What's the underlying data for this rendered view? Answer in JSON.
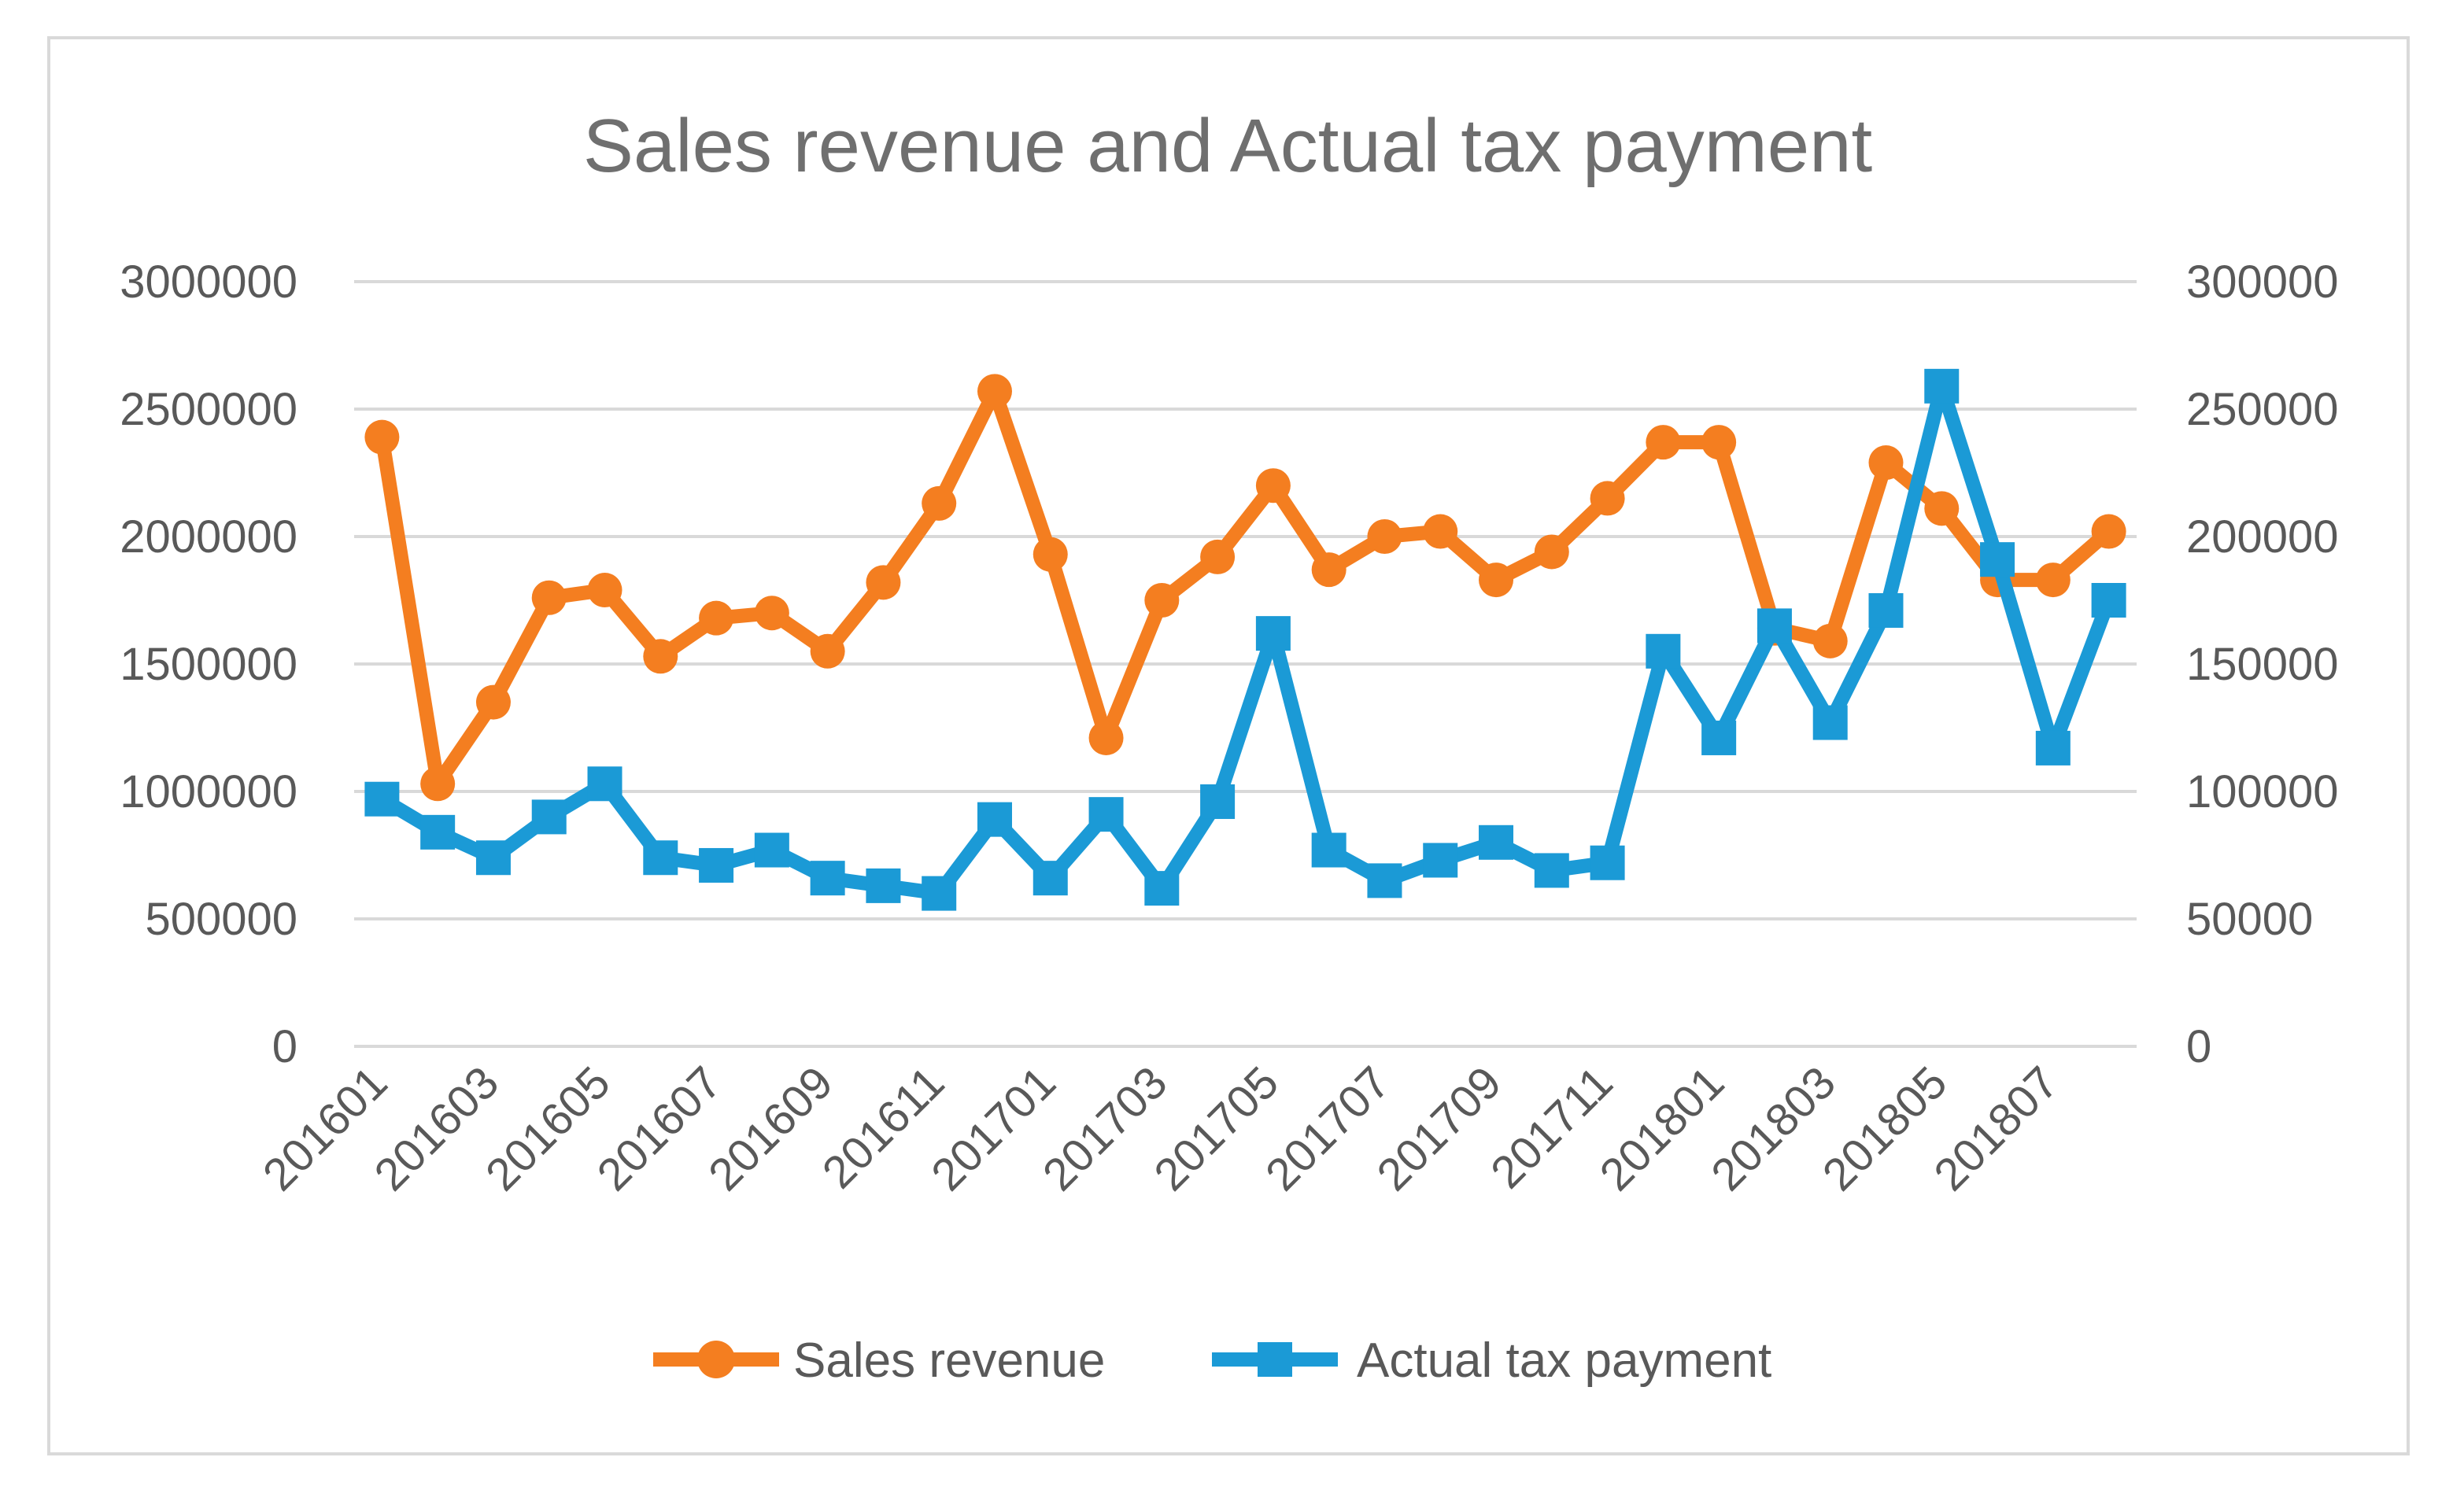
{
  "chart_data": {
    "type": "line",
    "title": "Sales revenue and Actual tax payment",
    "xlabel": "",
    "ylabel_left": "",
    "ylabel_right": "",
    "y_left_lim": [
      0,
      3000000
    ],
    "y_right_lim": [
      0,
      300000
    ],
    "y_left_ticks": [
      "0",
      "500000",
      "1000000",
      "1500000",
      "2000000",
      "2500000",
      "3000000"
    ],
    "y_right_ticks": [
      "0",
      "50000",
      "100000",
      "150000",
      "200000",
      "250000",
      "300000"
    ],
    "x_tick_labels": [
      "201601",
      "201603",
      "201605",
      "201607",
      "201609",
      "201611",
      "201701",
      "201703",
      "201705",
      "201707",
      "201709",
      "201711",
      "201801",
      "201803",
      "201805",
      "201807"
    ],
    "categories": [
      "201601",
      "201602",
      "201603",
      "201604",
      "201605",
      "201606",
      "201607",
      "201608",
      "201609",
      "201610",
      "201611",
      "201612",
      "201701",
      "201702",
      "201703",
      "201704",
      "201705",
      "201706",
      "201707",
      "201708",
      "201709",
      "201710",
      "201711",
      "201712",
      "201801",
      "201802",
      "201803",
      "201804",
      "201805",
      "201806",
      "201807",
      "201808"
    ],
    "grid": true,
    "legend_position": "bottom",
    "series": [
      {
        "name": "Sales revenue",
        "axis": "left",
        "color": "#f47e20",
        "marker": "circle",
        "values": [
          2390000,
          1030000,
          1350000,
          1760000,
          1790000,
          1530000,
          1680000,
          1700000,
          1550000,
          1820000,
          2130000,
          2570000,
          1930000,
          1210000,
          1750000,
          1920000,
          2200000,
          1870000,
          2000000,
          2020000,
          1830000,
          1940000,
          2150000,
          2370000,
          2370000,
          1640000,
          1590000,
          2290000,
          2110000,
          1830000,
          1830000,
          2020000
        ]
      },
      {
        "name": "Actual tax payment",
        "axis": "right",
        "color": "#1b9ad6",
        "marker": "square",
        "values": [
          97000,
          84000,
          74000,
          90000,
          103000,
          74000,
          71000,
          77000,
          66000,
          63000,
          60000,
          89000,
          66000,
          91000,
          62000,
          96000,
          162000,
          77000,
          65000,
          73000,
          80000,
          69000,
          72000,
          155000,
          121000,
          165000,
          127000,
          171000,
          259000,
          191000,
          117000,
          175000
        ]
      }
    ]
  }
}
